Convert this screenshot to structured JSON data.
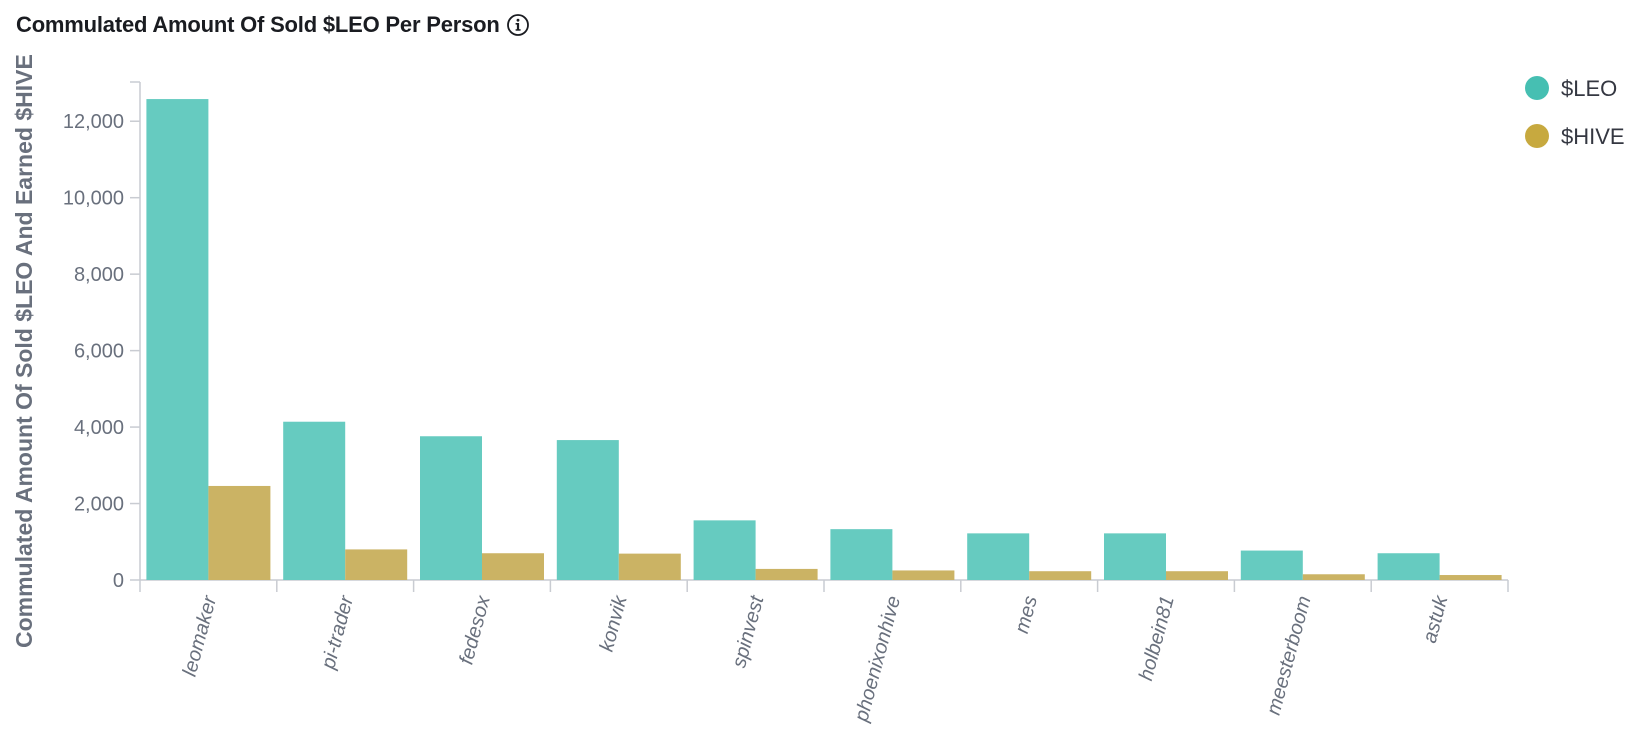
{
  "chart_data": {
    "type": "bar",
    "title": "Commulated Amount Of Sold $LEO Per Person",
    "ylabel": "Commulated Amount Of Sold $LEO And Earned $HIVE",
    "xlabel": "",
    "ylim": [
      0,
      13000
    ],
    "yticks": [
      0,
      2000,
      4000,
      6000,
      8000,
      10000,
      12000
    ],
    "ytick_labels": [
      "0",
      "2,000",
      "4,000",
      "6,000",
      "8,000",
      "10,000",
      "12,000"
    ],
    "categories": [
      "leomaker",
      "pi-trader",
      "fedesox",
      "konvik",
      "spinvest",
      "phoenixonhive",
      "mes",
      "holbein81",
      "meesterboom",
      "astuk"
    ],
    "series": [
      {
        "name": "$LEO",
        "color": "#66cbc0",
        "legend_color": "#46bfb2",
        "values": [
          12580,
          4140,
          3760,
          3660,
          1560,
          1330,
          1220,
          1220,
          770,
          700
        ]
      },
      {
        "name": "$HIVE",
        "color": "#cbb364",
        "legend_color": "#c7a93f",
        "values": [
          2460,
          800,
          700,
          690,
          290,
          250,
          230,
          230,
          150,
          130
        ]
      }
    ],
    "legend_position": "top-right",
    "grid": false
  }
}
